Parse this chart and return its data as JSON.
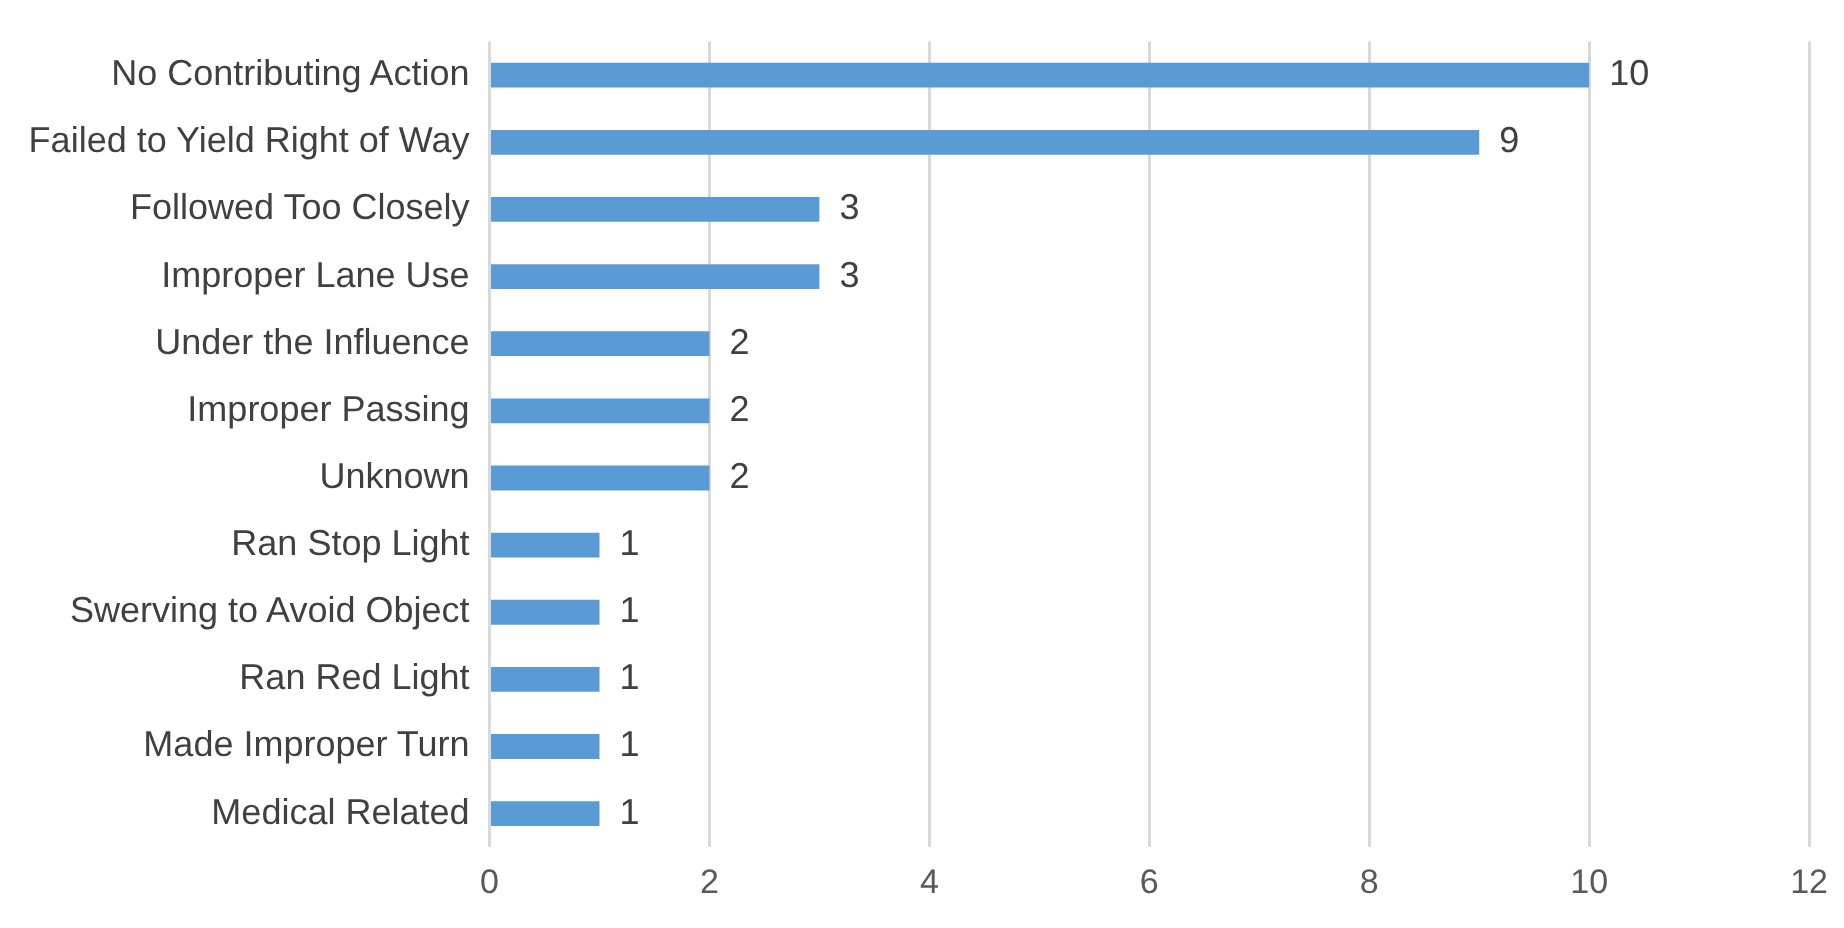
{
  "chart_data": {
    "type": "bar",
    "orientation": "horizontal",
    "categories": [
      "No Contributing Action",
      "Failed to Yield Right of Way",
      "Followed Too Closely",
      "Improper Lane Use",
      "Under the Influence",
      "Improper Passing",
      "Unknown",
      "Ran Stop Light",
      "Swerving to Avoid Object",
      "Ran Red Light",
      "Made Improper Turn",
      "Medical Related"
    ],
    "values": [
      10,
      9,
      3,
      3,
      2,
      2,
      2,
      1,
      1,
      1,
      1,
      1
    ],
    "color": "#5b9bd5",
    "xlim": [
      0,
      12
    ],
    "xticks": [
      0,
      2,
      4,
      6,
      8,
      10,
      12
    ],
    "grid": "x",
    "data_labels": true,
    "legend": false
  }
}
